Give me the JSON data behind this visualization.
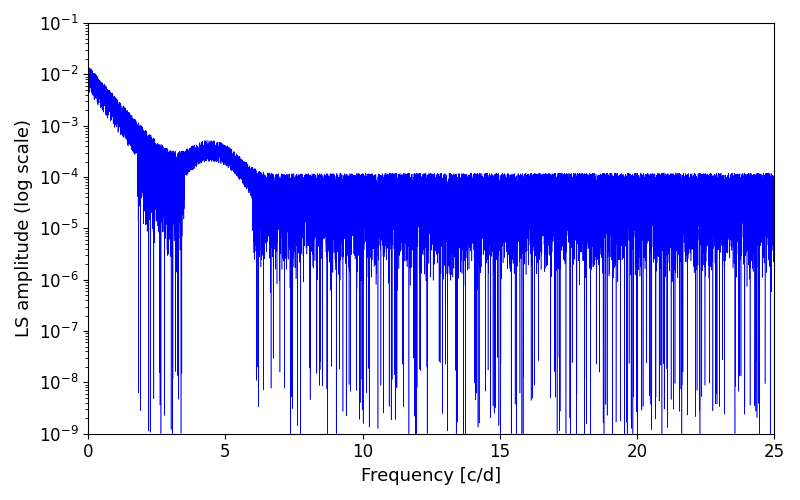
{
  "title": "",
  "xlabel": "Frequency [c/d]",
  "ylabel": "LS amplitude (log scale)",
  "line_color": "#0000ff",
  "line_width": 0.4,
  "xlim": [
    0,
    25
  ],
  "ylim": [
    1e-09,
    0.1
  ],
  "xmin": 0,
  "xmax": 25,
  "n_points": 20000,
  "seed": 123,
  "background_color": "#ffffff",
  "tick_labelsize": 12,
  "label_fontsize": 13
}
